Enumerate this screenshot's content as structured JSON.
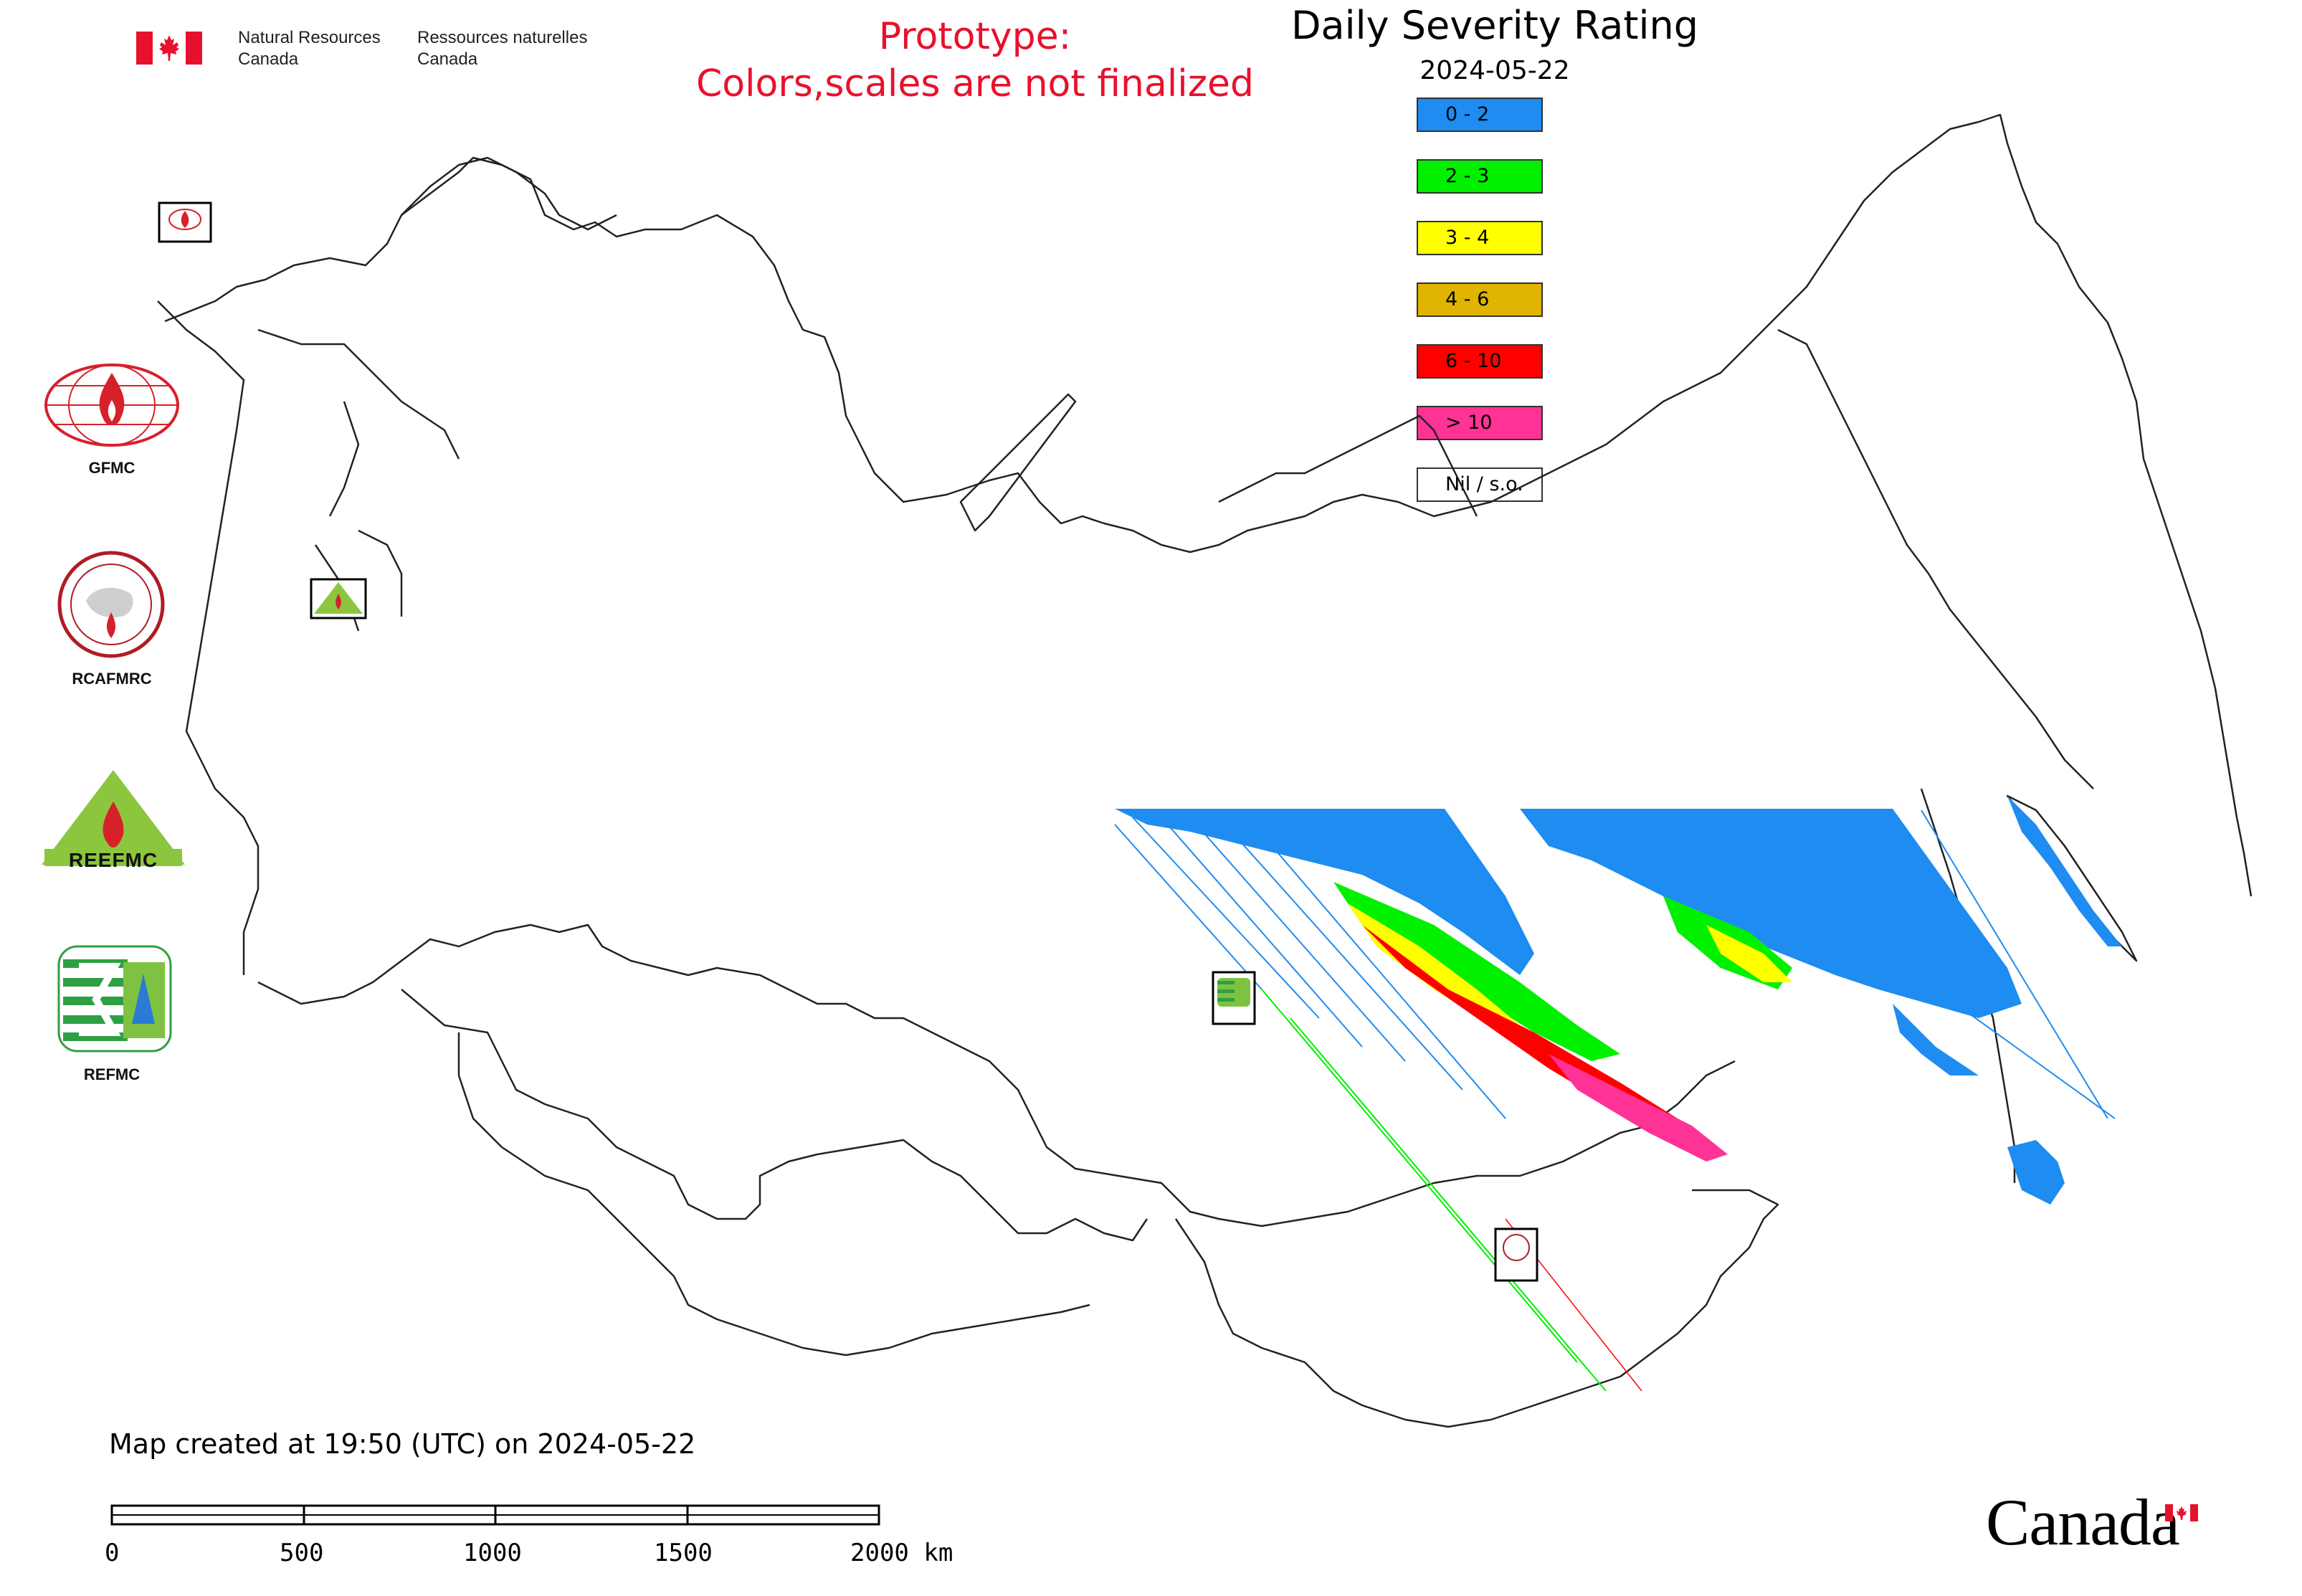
{
  "header": {
    "nrcan_en": [
      "Natural Resources",
      "Canada"
    ],
    "nrcan_fr": [
      "Ressources naturelles",
      "Canada"
    ],
    "prototype_line1": "Prototype:",
    "prototype_line2": "Colors,scales are not finalized"
  },
  "map": {
    "title": "Daily Severity Rating",
    "date": "2024-05-22"
  },
  "legend": {
    "items": [
      {
        "label": "0 - 2",
        "color": "#1e8cf0"
      },
      {
        "label": "2 - 3",
        "color": "#00f000"
      },
      {
        "label": "3 - 4",
        "color": "#ffff00"
      },
      {
        "label": "4 - 6",
        "color": "#e0b400"
      },
      {
        "label": "6 - 10",
        "color": "#ff0000"
      },
      {
        "label": "> 10",
        "color": "#ff3296"
      },
      {
        "label": "Nil / s.o.",
        "color": "#ffffff"
      }
    ]
  },
  "logos": [
    {
      "name": "gfmc-logo",
      "label": "GFMC"
    },
    {
      "name": "rcafmrc-logo",
      "label": "RCAFMRC"
    },
    {
      "name": "reefmc-logo",
      "label": "REEFMC"
    },
    {
      "name": "refmc-logo",
      "label": "REFMC"
    }
  ],
  "footer": {
    "created": "Map created at 19:50 (UTC) on 2024-05-22",
    "scale_ticks": [
      "0",
      "500",
      "1000",
      "1500",
      "2000 km"
    ],
    "canada_wordmark": "Canada"
  },
  "colors": {
    "accent_red": "#e8112d",
    "outline": "#222222"
  }
}
